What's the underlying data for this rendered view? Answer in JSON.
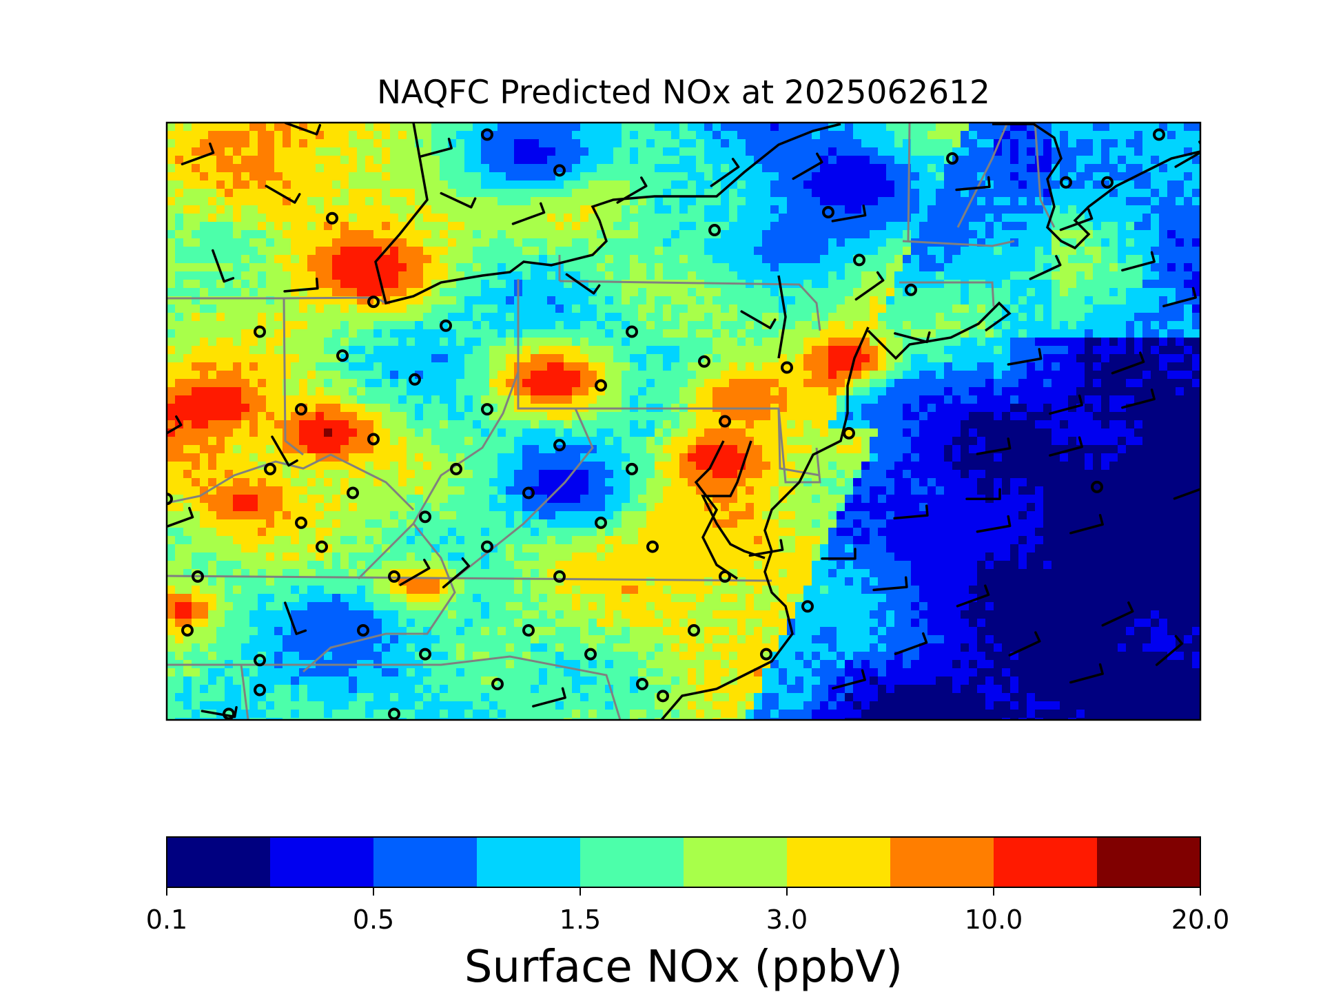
{
  "title": "NAQFC Predicted NOx at 2025062612",
  "colorbar": {
    "label": "Surface NOx (ppbV)",
    "tick_labels": [
      "0.1",
      "0.5",
      "1.5",
      "3.0",
      "10.0",
      "20.0"
    ],
    "colors": [
      "#000080",
      "#0000f0",
      "#0060ff",
      "#00d4ff",
      "#4cffaa",
      "#a8ff4a",
      "#ffe200",
      "#ff7e00",
      "#ff1a00",
      "#800000"
    ]
  },
  "map": {
    "field": "Surface NOx",
    "region": "Mid-Atlantic and Northeast United States",
    "overlays": [
      "state boundaries",
      "coastlines",
      "wind barbs",
      "station circle markers"
    ]
  }
}
